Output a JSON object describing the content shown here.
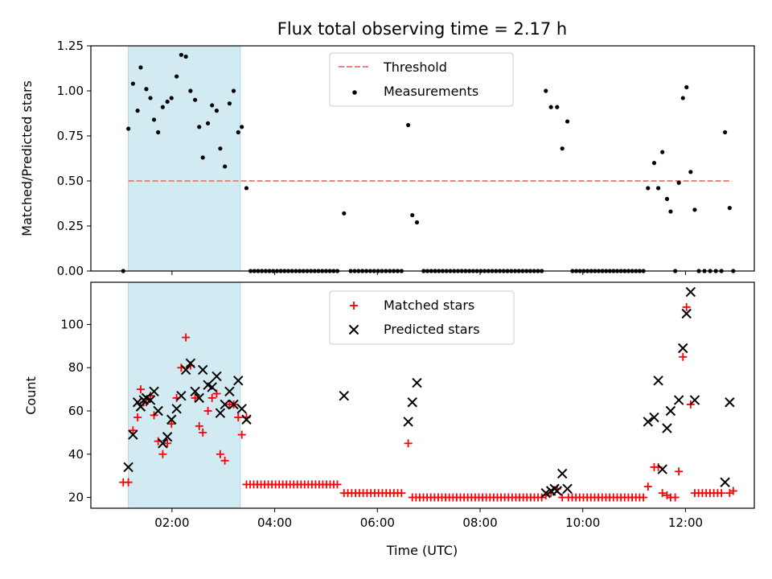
{
  "chart_data": {
    "title": "Flux total observing time = 2.17 h",
    "xlabel": "Time (UTC)",
    "x_unit": "hours UTC",
    "x_range": [
      0.42,
      13.34
    ],
    "x_ticks": [
      {
        "value": 2,
        "label": "02:00"
      },
      {
        "value": 4,
        "label": "04:00"
      },
      {
        "value": 6,
        "label": "06:00"
      },
      {
        "value": 8,
        "label": "08:00"
      },
      {
        "value": 10,
        "label": "10:00"
      },
      {
        "value": 12,
        "label": "12:00"
      }
    ],
    "highlight_span": {
      "x_start": 1.15,
      "x_end": 3.33,
      "color": "#add8e6"
    },
    "panels": [
      {
        "type": "scatter",
        "ylabel": "Matched/Predicted stars",
        "ylim": [
          0.0,
          1.25
        ],
        "y_ticks": [
          0.0,
          0.25,
          0.5,
          0.75,
          1.0,
          1.25
        ],
        "y_tick_labels": [
          "0.00",
          "0.25",
          "0.50",
          "0.75",
          "1.00",
          "1.25"
        ],
        "legend": {
          "position": "upper center",
          "entries": [
            "Threshold",
            "Measurements"
          ]
        },
        "threshold": {
          "name": "Threshold",
          "y": 0.5,
          "x_start": 1.15,
          "x_end": 12.9,
          "color": "#f08080"
        },
        "series": [
          {
            "name": "Measurements",
            "marker": "dot",
            "color": "#000000",
            "points": [
              [
                1.05,
                0.0
              ],
              [
                1.15,
                0.79
              ],
              [
                1.24,
                1.04
              ],
              [
                1.33,
                0.89
              ],
              [
                1.39,
                1.13
              ],
              [
                1.5,
                1.01
              ],
              [
                1.58,
                0.96
              ],
              [
                1.65,
                0.84
              ],
              [
                1.73,
                0.77
              ],
              [
                1.82,
                0.91
              ],
              [
                1.91,
                0.94
              ],
              [
                1.99,
                0.96
              ],
              [
                2.09,
                1.08
              ],
              [
                2.18,
                1.2
              ],
              [
                2.27,
                1.19
              ],
              [
                2.36,
                1.0
              ],
              [
                2.45,
                0.95
              ],
              [
                2.53,
                0.8
              ],
              [
                2.6,
                0.63
              ],
              [
                2.7,
                0.82
              ],
              [
                2.78,
                0.92
              ],
              [
                2.87,
                0.89
              ],
              [
                2.94,
                0.68
              ],
              [
                3.03,
                0.58
              ],
              [
                3.12,
                0.93
              ],
              [
                3.2,
                1.0
              ],
              [
                3.29,
                0.77
              ],
              [
                3.36,
                0.8
              ],
              [
                3.45,
                0.46
              ],
              [
                5.35,
                0.32
              ],
              [
                6.6,
                0.81
              ],
              [
                6.68,
                0.31
              ],
              [
                6.77,
                0.27
              ],
              [
                9.28,
                1.0
              ],
              [
                9.38,
                0.91
              ],
              [
                9.5,
                0.91
              ],
              [
                9.6,
                0.68
              ],
              [
                9.7,
                0.83
              ],
              [
                11.27,
                0.46
              ],
              [
                11.39,
                0.6
              ],
              [
                11.47,
                0.46
              ],
              [
                11.55,
                0.66
              ],
              [
                11.64,
                0.4
              ],
              [
                11.71,
                0.33
              ],
              [
                11.8,
                0.0
              ],
              [
                11.87,
                0.49
              ],
              [
                11.95,
                0.96
              ],
              [
                12.02,
                1.02
              ],
              [
                12.1,
                0.55
              ],
              [
                12.18,
                0.34
              ],
              [
                12.77,
                0.77
              ],
              [
                12.86,
                0.35
              ],
              [
                12.93,
                0.0
              ]
            ],
            "zero_runs": [
              {
                "from": 3.53,
                "to": 5.22,
                "count": 24
              },
              {
                "from": 5.48,
                "to": 6.47,
                "count": 14
              },
              {
                "from": 6.9,
                "to": 9.2,
                "count": 32
              },
              {
                "from": 9.8,
                "to": 11.18,
                "count": 20
              },
              {
                "from": 12.26,
                "to": 12.7,
                "count": 5
              }
            ]
          }
        ]
      },
      {
        "type": "scatter",
        "ylabel": "Count",
        "ylim": [
          15.0,
          119.5
        ],
        "y_ticks": [
          20,
          40,
          60,
          80,
          100
        ],
        "y_tick_labels": [
          "20",
          "40",
          "60",
          "80",
          "100"
        ],
        "legend": {
          "position": "upper center",
          "entries": [
            "Matched stars",
            "Predicted stars"
          ]
        },
        "series": [
          {
            "name": "Matched stars",
            "marker": "plus",
            "color": "#ff0000",
            "points": [
              [
                1.05,
                27
              ],
              [
                1.15,
                27
              ],
              [
                1.24,
                51
              ],
              [
                1.33,
                57
              ],
              [
                1.39,
                70
              ],
              [
                1.45,
                64
              ],
              [
                1.5,
                64
              ],
              [
                1.58,
                67
              ],
              [
                1.65,
                58
              ],
              [
                1.73,
                46
              ],
              [
                1.82,
                40
              ],
              [
                1.91,
                45
              ],
              [
                1.99,
                54
              ],
              [
                2.09,
                66
              ],
              [
                2.18,
                80
              ],
              [
                2.27,
                94
              ],
              [
                2.36,
                81
              ],
              [
                2.45,
                66
              ],
              [
                2.53,
                53
              ],
              [
                2.6,
                50
              ],
              [
                2.7,
                60
              ],
              [
                2.78,
                66
              ],
              [
                2.87,
                68
              ],
              [
                2.94,
                40
              ],
              [
                3.03,
                37
              ],
              [
                3.12,
                63
              ],
              [
                3.2,
                63
              ],
              [
                3.29,
                57
              ],
              [
                3.36,
                49
              ],
              [
                3.45,
                57
              ],
              [
                6.6,
                45
              ],
              [
                9.28,
                21
              ],
              [
                9.38,
                22
              ],
              [
                9.5,
                24
              ],
              [
                9.6,
                20
              ],
              [
                11.27,
                25
              ],
              [
                11.39,
                34
              ],
              [
                11.47,
                34
              ],
              [
                11.55,
                22
              ],
              [
                11.64,
                21
              ],
              [
                11.71,
                20
              ],
              [
                11.8,
                20
              ],
              [
                11.87,
                32
              ],
              [
                11.95,
                85
              ],
              [
                12.02,
                108
              ],
              [
                12.1,
                63
              ],
              [
                12.86,
                22
              ],
              [
                12.93,
                23
              ]
            ],
            "constant_runs": [
              {
                "from": 3.45,
                "to": 5.22,
                "count": 26,
                "y": 26
              },
              {
                "from": 5.35,
                "to": 6.47,
                "count": 16,
                "y": 22
              },
              {
                "from": 6.68,
                "to": 9.2,
                "count": 36,
                "y": 20
              },
              {
                "from": 9.72,
                "to": 11.18,
                "count": 21,
                "y": 20
              },
              {
                "from": 12.18,
                "to": 12.7,
                "count": 8,
                "y": 22
              }
            ]
          },
          {
            "name": "Predicted stars",
            "marker": "x",
            "color": "#000000",
            "points": [
              [
                1.15,
                34
              ],
              [
                1.24,
                49
              ],
              [
                1.33,
                64
              ],
              [
                1.39,
                62
              ],
              [
                1.45,
                65
              ],
              [
                1.5,
                66
              ],
              [
                1.58,
                65
              ],
              [
                1.65,
                69
              ],
              [
                1.73,
                60
              ],
              [
                1.82,
                45
              ],
              [
                1.91,
                48
              ],
              [
                1.99,
                56
              ],
              [
                2.09,
                61
              ],
              [
                2.18,
                67
              ],
              [
                2.27,
                79
              ],
              [
                2.36,
                82
              ],
              [
                2.45,
                69
              ],
              [
                2.53,
                66
              ],
              [
                2.6,
                79
              ],
              [
                2.7,
                72
              ],
              [
                2.78,
                71
              ],
              [
                2.87,
                76
              ],
              [
                2.94,
                59
              ],
              [
                3.03,
                63
              ],
              [
                3.12,
                69
              ],
              [
                3.2,
                63
              ],
              [
                3.29,
                74
              ],
              [
                3.36,
                61
              ],
              [
                3.45,
                56
              ],
              [
                5.35,
                67
              ],
              [
                6.6,
                55
              ],
              [
                6.68,
                64
              ],
              [
                6.77,
                73
              ],
              [
                9.28,
                22
              ],
              [
                9.38,
                23
              ],
              [
                9.45,
                24
              ],
              [
                9.5,
                23
              ],
              [
                9.6,
                31
              ],
              [
                9.7,
                24
              ],
              [
                11.27,
                55
              ],
              [
                11.39,
                57
              ],
              [
                11.47,
                74
              ],
              [
                11.55,
                33
              ],
              [
                11.64,
                52
              ],
              [
                11.71,
                60
              ],
              [
                11.87,
                65
              ],
              [
                11.95,
                89
              ],
              [
                12.02,
                105
              ],
              [
                12.1,
                115
              ],
              [
                12.18,
                65
              ],
              [
                12.77,
                27
              ],
              [
                12.86,
                64
              ]
            ]
          }
        ]
      }
    ]
  }
}
